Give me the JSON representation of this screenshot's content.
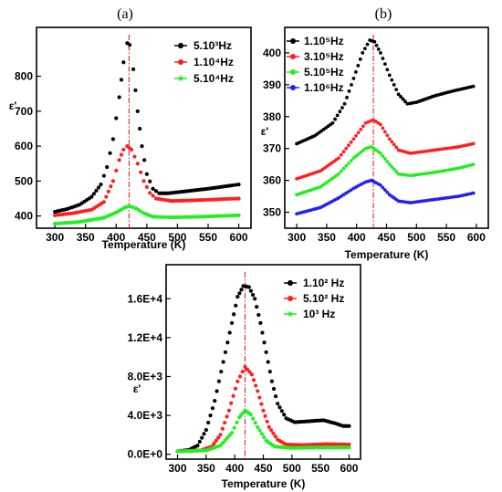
{
  "figure": {
    "panels": [
      {
        "id": "a",
        "label": "(a)",
        "xlabel": "Temperature (K)",
        "ylabel": "ε'",
        "xlim": [
          270,
          620
        ],
        "ylim": [
          365,
          940
        ],
        "xticks": [
          300,
          350,
          400,
          450,
          500,
          550,
          600
        ],
        "yticks": [
          400,
          500,
          600,
          700,
          800
        ],
        "ytick_labels": [
          "400",
          "500",
          "600",
          "700",
          "800"
        ],
        "peak_line_x": 421,
        "legend": [
          {
            "text": "5.10³Hz",
            "color": "#000000",
            "marker": "hexagon"
          },
          {
            "text": "1.10⁴Hz",
            "color": "#ff1f1f",
            "marker": "circle"
          },
          {
            "text": "5.10⁴Hz",
            "color": "#22ee22",
            "marker": "star"
          }
        ]
      },
      {
        "id": "b",
        "label": "(b)",
        "xlabel": "Temperature (K)",
        "ylabel": "ε'",
        "xlim": [
          280,
          620
        ],
        "ylim": [
          345,
          408
        ],
        "xticks": [
          300,
          350,
          400,
          450,
          500,
          550,
          600
        ],
        "yticks": [
          350,
          360,
          370,
          380,
          390,
          400
        ],
        "ytick_labels": [
          "350",
          "360",
          "370",
          "380",
          "390",
          "400"
        ],
        "peak_line_x": 428,
        "legend": [
          {
            "text": "1.10⁵Hz",
            "color": "#000000",
            "marker": "circle"
          },
          {
            "text": "3.10⁵Hz",
            "color": "#ff1f1f",
            "marker": "circle"
          },
          {
            "text": "5.10⁵Hz",
            "color": "#22ee22",
            "marker": "circle"
          },
          {
            "text": "1.10⁶Hz",
            "color": "#2222ee",
            "marker": "circle"
          }
        ]
      },
      {
        "id": "c",
        "label": "",
        "xlabel": "Temperature (K)",
        "ylabel": "ε'",
        "xlim": [
          280,
          620
        ],
        "ylim": [
          -500,
          19500
        ],
        "xticks": [
          300,
          350,
          400,
          450,
          500,
          550,
          600
        ],
        "yticks": [
          0,
          4000,
          8000,
          12000,
          16000
        ],
        "ytick_labels": [
          "0.0E+0",
          "4.0E+3",
          "8.0E+3",
          "1.2E+4",
          "1.6E+4"
        ],
        "peak_line_x": 418,
        "legend": [
          {
            "text": "1.10² Hz",
            "color": "#000000",
            "marker": "hexagon"
          },
          {
            "text": "5.10² Hz",
            "color": "#ff1f1f",
            "marker": "circle"
          },
          {
            "text": "10³   Hz",
            "color": "#22ee22",
            "marker": "star"
          }
        ]
      }
    ]
  },
  "chart_data": [
    {
      "type": "scatter",
      "title": "(a)",
      "xlabel": "Temperature (K)",
      "ylabel": "ε'",
      "xlim": [
        270,
        620
      ],
      "ylim": [
        365,
        940
      ],
      "grid": false,
      "legend_placement": "top-right",
      "peak_line_x": 421,
      "series": [
        {
          "name": "5.10³Hz",
          "color": "#000000",
          "points": [
            [
              300,
              412
            ],
            [
              320,
              420
            ],
            [
              340,
              432
            ],
            [
              360,
              455
            ],
            [
              375,
              490
            ],
            [
              385,
              540
            ],
            [
              395,
              620
            ],
            [
              405,
              740
            ],
            [
              412,
              840
            ],
            [
              418,
              895
            ],
            [
              422,
              890
            ],
            [
              428,
              820
            ],
            [
              435,
              700
            ],
            [
              442,
              600
            ],
            [
              450,
              520
            ],
            [
              460,
              478
            ],
            [
              470,
              465
            ],
            [
              485,
              465
            ],
            [
              510,
              470
            ],
            [
              550,
              478
            ],
            [
              590,
              488
            ],
            [
              600,
              490
            ]
          ]
        },
        {
          "name": "1.10⁴Hz",
          "color": "#ff1f1f",
          "points": [
            [
              300,
              402
            ],
            [
              330,
              408
            ],
            [
              360,
              418
            ],
            [
              380,
              440
            ],
            [
              395,
              500
            ],
            [
              405,
              560
            ],
            [
              412,
              590
            ],
            [
              418,
              600
            ],
            [
              425,
              590
            ],
            [
              435,
              550
            ],
            [
              445,
              500
            ],
            [
              455,
              466
            ],
            [
              465,
              450
            ],
            [
              490,
              443
            ],
            [
              530,
              445
            ],
            [
              570,
              448
            ],
            [
              600,
              450
            ]
          ]
        },
        {
          "name": "5.10⁴Hz",
          "color": "#22ee22",
          "points": [
            [
              300,
              378
            ],
            [
              340,
              383
            ],
            [
              380,
              395
            ],
            [
              400,
              410
            ],
            [
              415,
              425
            ],
            [
              422,
              428
            ],
            [
              432,
              422
            ],
            [
              445,
              408
            ],
            [
              460,
              398
            ],
            [
              490,
              396
            ],
            [
              540,
              398
            ],
            [
              600,
              402
            ]
          ]
        }
      ]
    },
    {
      "type": "scatter",
      "title": "(b)",
      "xlabel": "Temperature (K)",
      "ylabel": "ε'",
      "xlim": [
        280,
        620
      ],
      "ylim": [
        345,
        408
      ],
      "grid": false,
      "legend_placement": "top-left",
      "peak_line_x": 428,
      "series": [
        {
          "name": "1.10⁵Hz",
          "color": "#000000",
          "points": [
            [
              300,
              371.5
            ],
            [
              330,
              374
            ],
            [
              360,
              378
            ],
            [
              380,
              384
            ],
            [
              395,
              392
            ],
            [
              410,
              400
            ],
            [
              422,
              404
            ],
            [
              430,
              403.5
            ],
            [
              440,
              400
            ],
            [
              455,
              393
            ],
            [
              470,
              387
            ],
            [
              485,
              384
            ],
            [
              500,
              384.5
            ],
            [
              530,
              386.5
            ],
            [
              560,
              388
            ],
            [
              595,
              389.5
            ]
          ]
        },
        {
          "name": "3.10⁵Hz",
          "color": "#ff1f1f",
          "points": [
            [
              300,
              360.5
            ],
            [
              340,
              363
            ],
            [
              370,
              367
            ],
            [
              395,
              373
            ],
            [
              415,
              378
            ],
            [
              428,
              379
            ],
            [
              440,
              377.5
            ],
            [
              455,
              373
            ],
            [
              470,
              369.5
            ],
            [
              490,
              368.5
            ],
            [
              530,
              369.5
            ],
            [
              570,
              370.5
            ],
            [
              595,
              371.5
            ]
          ]
        },
        {
          "name": "5.10⁵Hz",
          "color": "#22ee22",
          "points": [
            [
              300,
              355.5
            ],
            [
              340,
              358
            ],
            [
              370,
              362
            ],
            [
              395,
              367
            ],
            [
              415,
              370
            ],
            [
              425,
              370.5
            ],
            [
              440,
              368.5
            ],
            [
              455,
              365
            ],
            [
              470,
              362
            ],
            [
              490,
              361.5
            ],
            [
              530,
              362.5
            ],
            [
              570,
              363.8
            ],
            [
              595,
              365
            ]
          ]
        },
        {
          "name": "1.10⁶Hz",
          "color": "#2222ee",
          "points": [
            [
              300,
              349.5
            ],
            [
              340,
              351.5
            ],
            [
              370,
              354.5
            ],
            [
              395,
              357.5
            ],
            [
              415,
              359.5
            ],
            [
              425,
              360
            ],
            [
              440,
              358.5
            ],
            [
              455,
              355.5
            ],
            [
              470,
              353.5
            ],
            [
              490,
              353
            ],
            [
              530,
              354
            ],
            [
              570,
              355
            ],
            [
              595,
              356
            ]
          ]
        }
      ]
    },
    {
      "type": "scatter",
      "title": "",
      "xlabel": "Temperature (K)",
      "ylabel": "ε'",
      "xlim": [
        280,
        620
      ],
      "ylim": [
        -500,
        19500
      ],
      "grid": false,
      "legend_placement": "top-right",
      "peak_line_x": 418,
      "series": [
        {
          "name": "1.10² Hz",
          "color": "#000000",
          "points": [
            [
              300,
              300
            ],
            [
              320,
              450
            ],
            [
              335,
              900
            ],
            [
              350,
              2500
            ],
            [
              365,
              5500
            ],
            [
              380,
              9500
            ],
            [
              395,
              13500
            ],
            [
              405,
              16200
            ],
            [
              415,
              17300
            ],
            [
              425,
              17200
            ],
            [
              435,
              16000
            ],
            [
              445,
              13500
            ],
            [
              455,
              10500
            ],
            [
              465,
              7500
            ],
            [
              475,
              5200
            ],
            [
              490,
              3700
            ],
            [
              505,
              3300
            ],
            [
              530,
              3400
            ],
            [
              555,
              3500
            ],
            [
              575,
              3200
            ],
            [
              590,
              2900
            ],
            [
              600,
              2900
            ]
          ]
        },
        {
          "name": "5.10² Hz",
          "color": "#ff1f1f",
          "points": [
            [
              300,
              300
            ],
            [
              340,
              400
            ],
            [
              360,
              800
            ],
            [
              375,
              2000
            ],
            [
              390,
              4500
            ],
            [
              405,
              7500
            ],
            [
              418,
              9000
            ],
            [
              430,
              8200
            ],
            [
              440,
              6500
            ],
            [
              450,
              4500
            ],
            [
              460,
              2800
            ],
            [
              475,
              1500
            ],
            [
              490,
              1000
            ],
            [
              520,
              950
            ],
            [
              560,
              1050
            ],
            [
              600,
              1000
            ]
          ]
        },
        {
          "name": "10³ Hz",
          "color": "#22ee22",
          "points": [
            [
              300,
              300
            ],
            [
              350,
              400
            ],
            [
              375,
              900
            ],
            [
              395,
              2200
            ],
            [
              408,
              3800
            ],
            [
              418,
              4500
            ],
            [
              428,
              4100
            ],
            [
              440,
              2800
            ],
            [
              455,
              1400
            ],
            [
              470,
              800
            ],
            [
              500,
              650
            ],
            [
              550,
              700
            ],
            [
              600,
              700
            ]
          ]
        }
      ]
    }
  ]
}
